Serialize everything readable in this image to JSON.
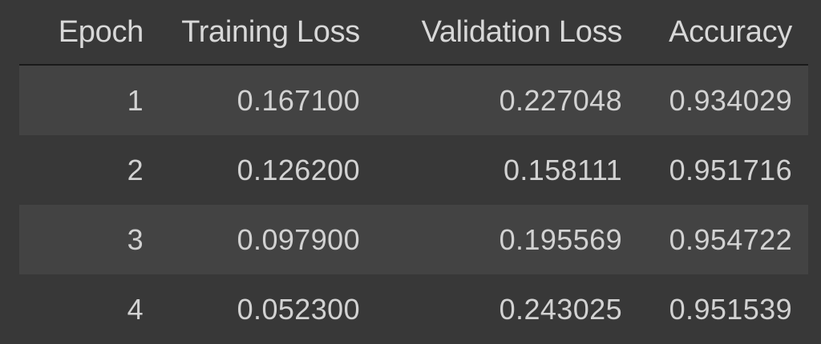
{
  "table": {
    "columns": [
      "Epoch",
      "Training Loss",
      "Validation Loss",
      "Accuracy"
    ],
    "rows": [
      {
        "epoch": "1",
        "training_loss": "0.167100",
        "validation_loss": "0.227048",
        "accuracy": "0.934029"
      },
      {
        "epoch": "2",
        "training_loss": "0.126200",
        "validation_loss": "0.158111",
        "accuracy": "0.951716"
      },
      {
        "epoch": "3",
        "training_loss": "0.097900",
        "validation_loss": "0.195569",
        "accuracy": "0.954722"
      },
      {
        "epoch": "4",
        "training_loss": "0.052300",
        "validation_loss": "0.243025",
        "accuracy": "0.951539"
      }
    ]
  },
  "colors": {
    "background": "#383838",
    "row_stripe": "#434343",
    "text": "#d2d2d2",
    "header_rule": "#1a1a1a"
  }
}
